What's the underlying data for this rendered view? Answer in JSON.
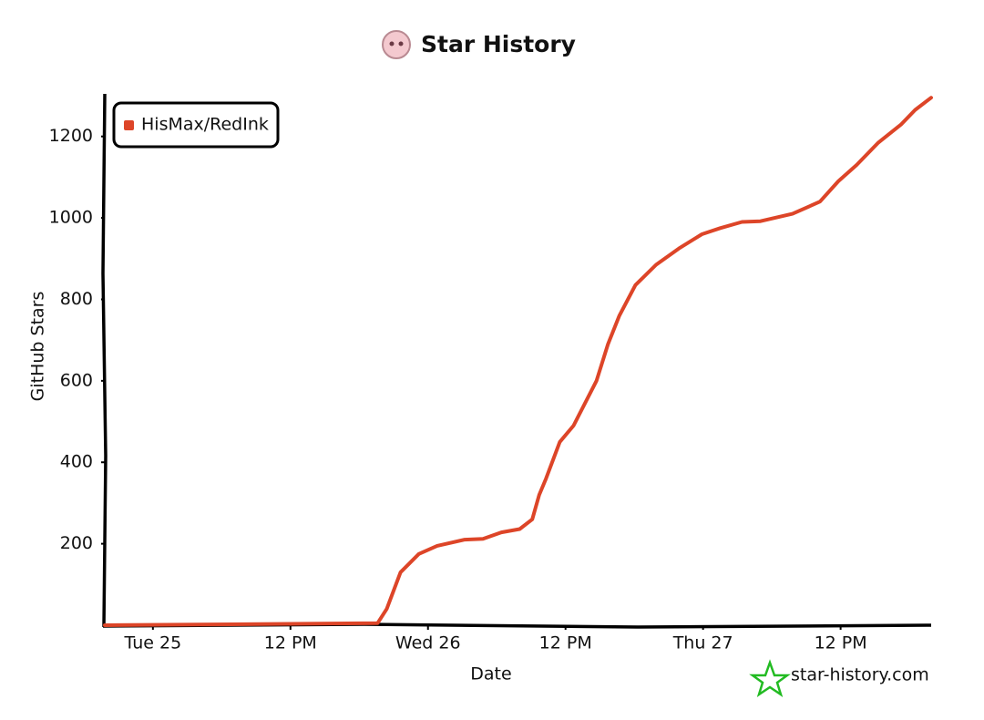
{
  "chart_data": {
    "type": "line",
    "title": "Star History",
    "xlabel": "Date",
    "ylabel": "GitHub Stars",
    "watermark": "star-history.com",
    "legend": "top-left",
    "x": [
      -4.2,
      19.6,
      20.4,
      21.6,
      23.2,
      24.8,
      27.2,
      28.8,
      30.4,
      32.0,
      33.1,
      33.7,
      34.3,
      35.5,
      36.7,
      38.7,
      39.7,
      40.7,
      42.1,
      43.9,
      45.9,
      47.9,
      49.5,
      51.4,
      53.0,
      55.8,
      58.2,
      59.8,
      61.4,
      63.3,
      65.3,
      66.5,
      67.9
    ],
    "series": [
      {
        "name": "HisMax/RedInk",
        "color": "#dd4528",
        "values": [
          0,
          5,
          40,
          130,
          175,
          195,
          210,
          212,
          228,
          236,
          260,
          320,
          360,
          450,
          490,
          600,
          690,
          760,
          835,
          885,
          925,
          960,
          975,
          990,
          992,
          1010,
          1040,
          1090,
          1130,
          1185,
          1230,
          1265,
          1295
        ]
      }
    ],
    "xlim": [
      -4.2,
      67.9
    ],
    "xticks": [
      {
        "value": 0,
        "label": "Tue 25"
      },
      {
        "value": 12,
        "label": "12 PM"
      },
      {
        "value": 24,
        "label": "Wed 26"
      },
      {
        "value": 36,
        "label": "12 PM"
      },
      {
        "value": 48,
        "label": "Thu 27"
      },
      {
        "value": 60,
        "label": "12 PM"
      }
    ],
    "ylim": [
      0,
      1300
    ],
    "yticks": [
      200,
      400,
      600,
      800,
      1000,
      1200
    ]
  }
}
